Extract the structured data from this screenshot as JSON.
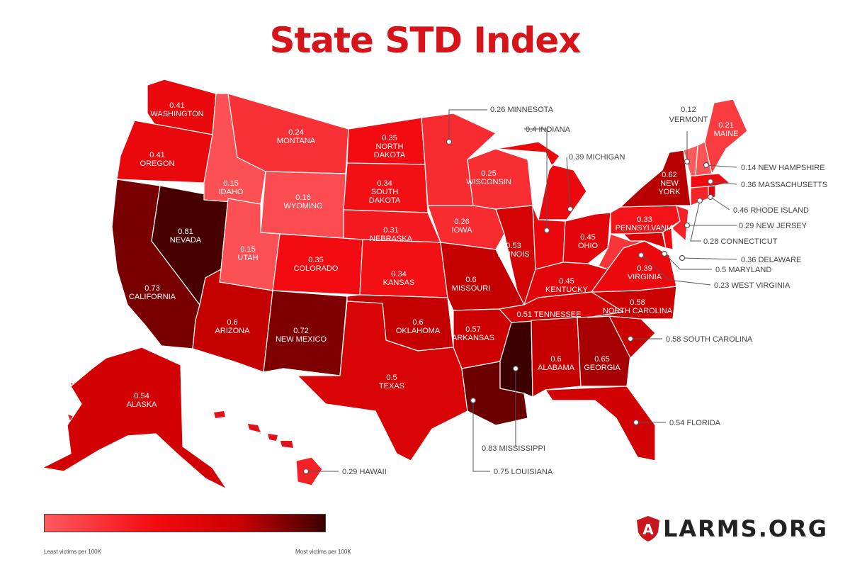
{
  "title": "State STD Index",
  "legend": {
    "min_label": "Least victims per 100K",
    "max_label": "Most victims per 100K",
    "colors": [
      "#ff5a5e",
      "#f20a10",
      "#c90000",
      "#3c0000"
    ]
  },
  "brand": {
    "text": "LARMS.ORG",
    "logo_letter": "A"
  },
  "states": [
    {
      "name": "WASHINGTON",
      "value": "0.41"
    },
    {
      "name": "OREGON",
      "value": "0.41"
    },
    {
      "name": "CALIFORNIA",
      "value": "0.73"
    },
    {
      "name": "NEVADA",
      "value": "0.81"
    },
    {
      "name": "IDAHO",
      "value": "0.15"
    },
    {
      "name": "MONTANA",
      "value": "0.24"
    },
    {
      "name": "WYOMING",
      "value": "0.16"
    },
    {
      "name": "UTAH",
      "value": "0.15"
    },
    {
      "name": "ARIZONA",
      "value": "0.6"
    },
    {
      "name": "COLORADO",
      "value": "0.35"
    },
    {
      "name": "NEW MEXICO",
      "value": "0.72"
    },
    {
      "name": "NORTH DAKOTA",
      "value": "0.35"
    },
    {
      "name": "SOUTH DAKOTA",
      "value": "0.34"
    },
    {
      "name": "NEBRASKA",
      "value": "0.31"
    },
    {
      "name": "KANSAS",
      "value": "0.34"
    },
    {
      "name": "OKLAHOMA",
      "value": "0.6"
    },
    {
      "name": "TEXAS",
      "value": "0.5"
    },
    {
      "name": "MINNESOTA",
      "value": "0.26"
    },
    {
      "name": "IOWA",
      "value": "0.26"
    },
    {
      "name": "MISSOURI",
      "value": "0.6"
    },
    {
      "name": "ARKANSAS",
      "value": "0.57"
    },
    {
      "name": "LOUISIANA",
      "value": "0.75"
    },
    {
      "name": "WISCONSIN",
      "value": "0.25"
    },
    {
      "name": "ILLINOIS",
      "value": "0.53"
    },
    {
      "name": "MISSISSIPPI",
      "value": "0.83"
    },
    {
      "name": "MICHIGAN",
      "value": "0.39"
    },
    {
      "name": "INDIANA",
      "value": "0.4"
    },
    {
      "name": "OHIO",
      "value": "0.45"
    },
    {
      "name": "KENTUCKY",
      "value": "0.45"
    },
    {
      "name": "TENNESSEE",
      "value": "0.51"
    },
    {
      "name": "ALABAMA",
      "value": "0.6"
    },
    {
      "name": "GEORGIA",
      "value": "0.65"
    },
    {
      "name": "FLORIDA",
      "value": "0.54"
    },
    {
      "name": "SOUTH CAROLINA",
      "value": "0.58"
    },
    {
      "name": "NORTH CAROLINA",
      "value": "0.58"
    },
    {
      "name": "VIRGINIA",
      "value": "0.39"
    },
    {
      "name": "WEST VIRGINIA",
      "value": "0.23"
    },
    {
      "name": "MARYLAND",
      "value": "0.5"
    },
    {
      "name": "DELAWARE",
      "value": "0.36"
    },
    {
      "name": "PENNSYLVANIA",
      "value": "0.33"
    },
    {
      "name": "NEW JERSEY",
      "value": "0.29"
    },
    {
      "name": "NEW YORK",
      "value": "0.62"
    },
    {
      "name": "CONNECTICUT",
      "value": "0.28"
    },
    {
      "name": "RHODE ISLAND",
      "value": "0.46"
    },
    {
      "name": "MASSACHUSETTS",
      "value": "0.36"
    },
    {
      "name": "VERMONT",
      "value": "0.12"
    },
    {
      "name": "NEW HAMPSHIRE",
      "value": "0.14"
    },
    {
      "name": "MAINE",
      "value": "0.21"
    },
    {
      "name": "ALASKA",
      "value": "0.54"
    },
    {
      "name": "HAWAII",
      "value": "0.29"
    }
  ]
}
